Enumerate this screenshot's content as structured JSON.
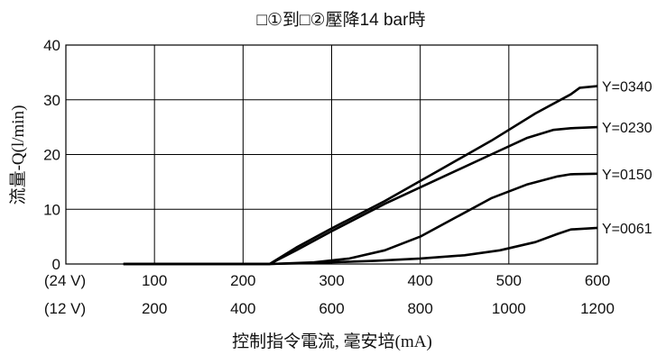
{
  "chart_data": {
    "type": "line",
    "title": "□①到□②壓降14 bar時",
    "ylabel": "流量-Q(l/min)",
    "xlabel": "控制指令電流, 毫安培(mA)",
    "ylim": [
      0,
      40
    ],
    "yticks": [
      "0",
      "10",
      "20",
      "30",
      "40"
    ],
    "xlim": [
      0,
      600
    ],
    "x_axis_rows": [
      {
        "unit_label": "(24 V)",
        "ticks": [
          "100",
          "200",
          "300",
          "400",
          "500",
          "600"
        ]
      },
      {
        "unit_label": "(12 V)",
        "ticks": [
          "200",
          "400",
          "600",
          "800",
          "1000",
          "1200"
        ]
      }
    ],
    "grid": true,
    "series": [
      {
        "name": "Y=0340",
        "x": [
          65,
          230,
          260,
          300,
          360,
          420,
          480,
          530,
          570,
          580,
          600
        ],
        "y": [
          0,
          0,
          3,
          6.5,
          11.5,
          17,
          22.5,
          27.5,
          31,
          32.2,
          32.5
        ]
      },
      {
        "name": "Y=0230",
        "x": [
          65,
          230,
          260,
          300,
          360,
          420,
          480,
          520,
          550,
          570,
          600
        ],
        "y": [
          0,
          0,
          2.5,
          6,
          11,
          15.5,
          20,
          23,
          24.5,
          24.8,
          25
        ]
      },
      {
        "name": "Y=0150",
        "x": [
          65,
          230,
          280,
          320,
          360,
          400,
          440,
          480,
          520,
          555,
          570,
          600
        ],
        "y": [
          0,
          0,
          0.3,
          1,
          2.5,
          5,
          8.5,
          12,
          14.5,
          16,
          16.4,
          16.5
        ]
      },
      {
        "name": "Y=0061",
        "x": [
          65,
          230,
          280,
          350,
          400,
          450,
          490,
          530,
          555,
          570,
          600
        ],
        "y": [
          0,
          0,
          0.2,
          0.6,
          1,
          1.6,
          2.5,
          4,
          5.5,
          6.3,
          6.6
        ]
      }
    ]
  }
}
